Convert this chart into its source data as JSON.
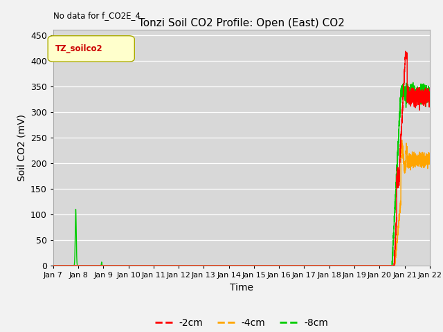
{
  "title": "Tonzi Soil CO2 Profile: Open (East) CO2",
  "no_data_text": "No data for f_CO2E_4",
  "ylabel": "Soil CO2 (mV)",
  "xlabel": "Time",
  "legend_label": "TZ_soilco2",
  "ylim": [
    0,
    460
  ],
  "yticks": [
    0,
    50,
    100,
    150,
    200,
    250,
    300,
    350,
    400,
    450
  ],
  "background_color": "#d8d8d8",
  "series": {
    "neg2cm": {
      "label": "-2cm",
      "color": "#ff0000"
    },
    "neg4cm": {
      "label": "-4cm",
      "color": "#ffa500"
    },
    "neg8cm": {
      "label": "-8cm",
      "color": "#00cc00"
    }
  },
  "x_start": 7.0,
  "x_end": 22.0,
  "xtick_positions": [
    7,
    8,
    9,
    10,
    11,
    12,
    13,
    14,
    15,
    16,
    17,
    18,
    19,
    20,
    21,
    22
  ],
  "xtick_labels": [
    "Jan 7",
    "Jan 8",
    "Jan 9",
    "Jan 10",
    "Jan 11",
    "Jan 12",
    "Jan 13",
    "Jan 14",
    "Jan 15",
    "Jan 16",
    "Jan 17",
    "Jan 18",
    "Jan 19",
    "Jan 20",
    "Jan 21",
    "Jan 22"
  ]
}
